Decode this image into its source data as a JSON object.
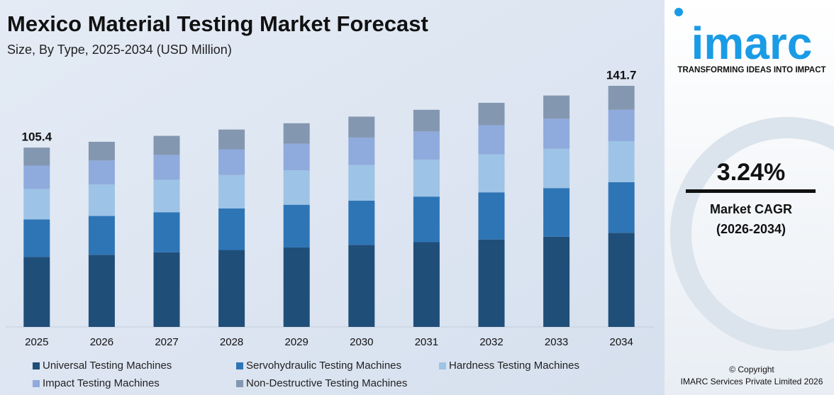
{
  "chart_data": {
    "type": "stacked_bar",
    "title": "Mexico Material Testing Market Forecast",
    "subtitle": "Size, By Type, 2025-2034 (USD Million)",
    "categories": [
      "2025",
      "2026",
      "2027",
      "2028",
      "2029",
      "2030",
      "2031",
      "2032",
      "2033",
      "2034"
    ],
    "series": [
      {
        "name": "Universal Testing Machines",
        "color": "#1f4e79",
        "values": [
          41.1,
          42.4,
          43.8,
          45.2,
          46.7,
          48.2,
          49.8,
          51.4,
          53.0,
          55.3
        ]
      },
      {
        "name": "Servohydraulic Testing Machines",
        "color": "#2e75b6",
        "values": [
          22.1,
          22.8,
          23.6,
          24.4,
          25.1,
          26.0,
          26.8,
          27.7,
          28.6,
          29.8
        ]
      },
      {
        "name": "Hardness Testing Machines",
        "color": "#9dc3e6",
        "values": [
          17.9,
          18.5,
          19.1,
          19.7,
          20.3,
          21.0,
          21.7,
          22.4,
          23.1,
          24.1
        ]
      },
      {
        "name": "Impact Testing Machines",
        "color": "#8faadc",
        "values": [
          13.7,
          14.1,
          14.6,
          15.1,
          15.6,
          16.1,
          16.6,
          17.1,
          17.7,
          18.4
        ]
      },
      {
        "name": "Non-Destructive Testing Machines",
        "color": "#8497b0",
        "values": [
          10.6,
          11.0,
          11.2,
          11.6,
          12.0,
          12.3,
          12.7,
          13.1,
          13.6,
          14.1
        ]
      }
    ],
    "totals": [
      105.4,
      null,
      null,
      null,
      null,
      null,
      null,
      null,
      null,
      141.7
    ]
  },
  "sidebar": {
    "logo": "imarc",
    "tagline": "TRANSFORMING IDEAS INTO IMPACT",
    "cagr": "3.24%",
    "cagr_label": "Market CAGR",
    "cagr_period": "(2026-2034)",
    "copyright": "© Copyright",
    "company": "IMARC Services Private Limited 2026"
  }
}
